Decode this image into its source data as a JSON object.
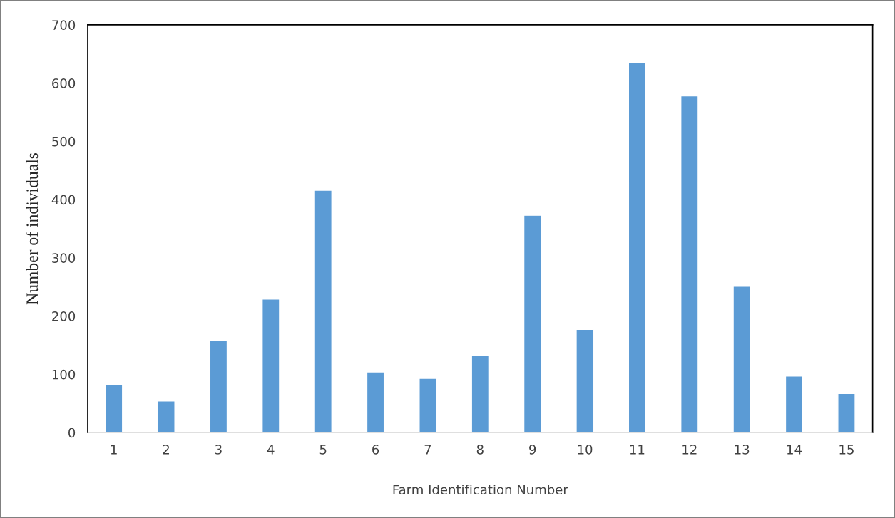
{
  "chart_data": {
    "type": "bar",
    "xlabel": "Farm Identification Number",
    "ylabel": "Number of individuals",
    "categories": [
      "1",
      "2",
      "3",
      "4",
      "5",
      "6",
      "7",
      "8",
      "9",
      "10",
      "11",
      "12",
      "13",
      "14",
      "15"
    ],
    "values": [
      83,
      54,
      158,
      229,
      416,
      104,
      93,
      132,
      373,
      177,
      635,
      578,
      251,
      97,
      67
    ],
    "color": "#5b9bd5",
    "ylim": [
      0,
      700
    ],
    "yticks": [
      0,
      100,
      200,
      300,
      400,
      500,
      600,
      700
    ],
    "grid": false,
    "legend": false
  }
}
